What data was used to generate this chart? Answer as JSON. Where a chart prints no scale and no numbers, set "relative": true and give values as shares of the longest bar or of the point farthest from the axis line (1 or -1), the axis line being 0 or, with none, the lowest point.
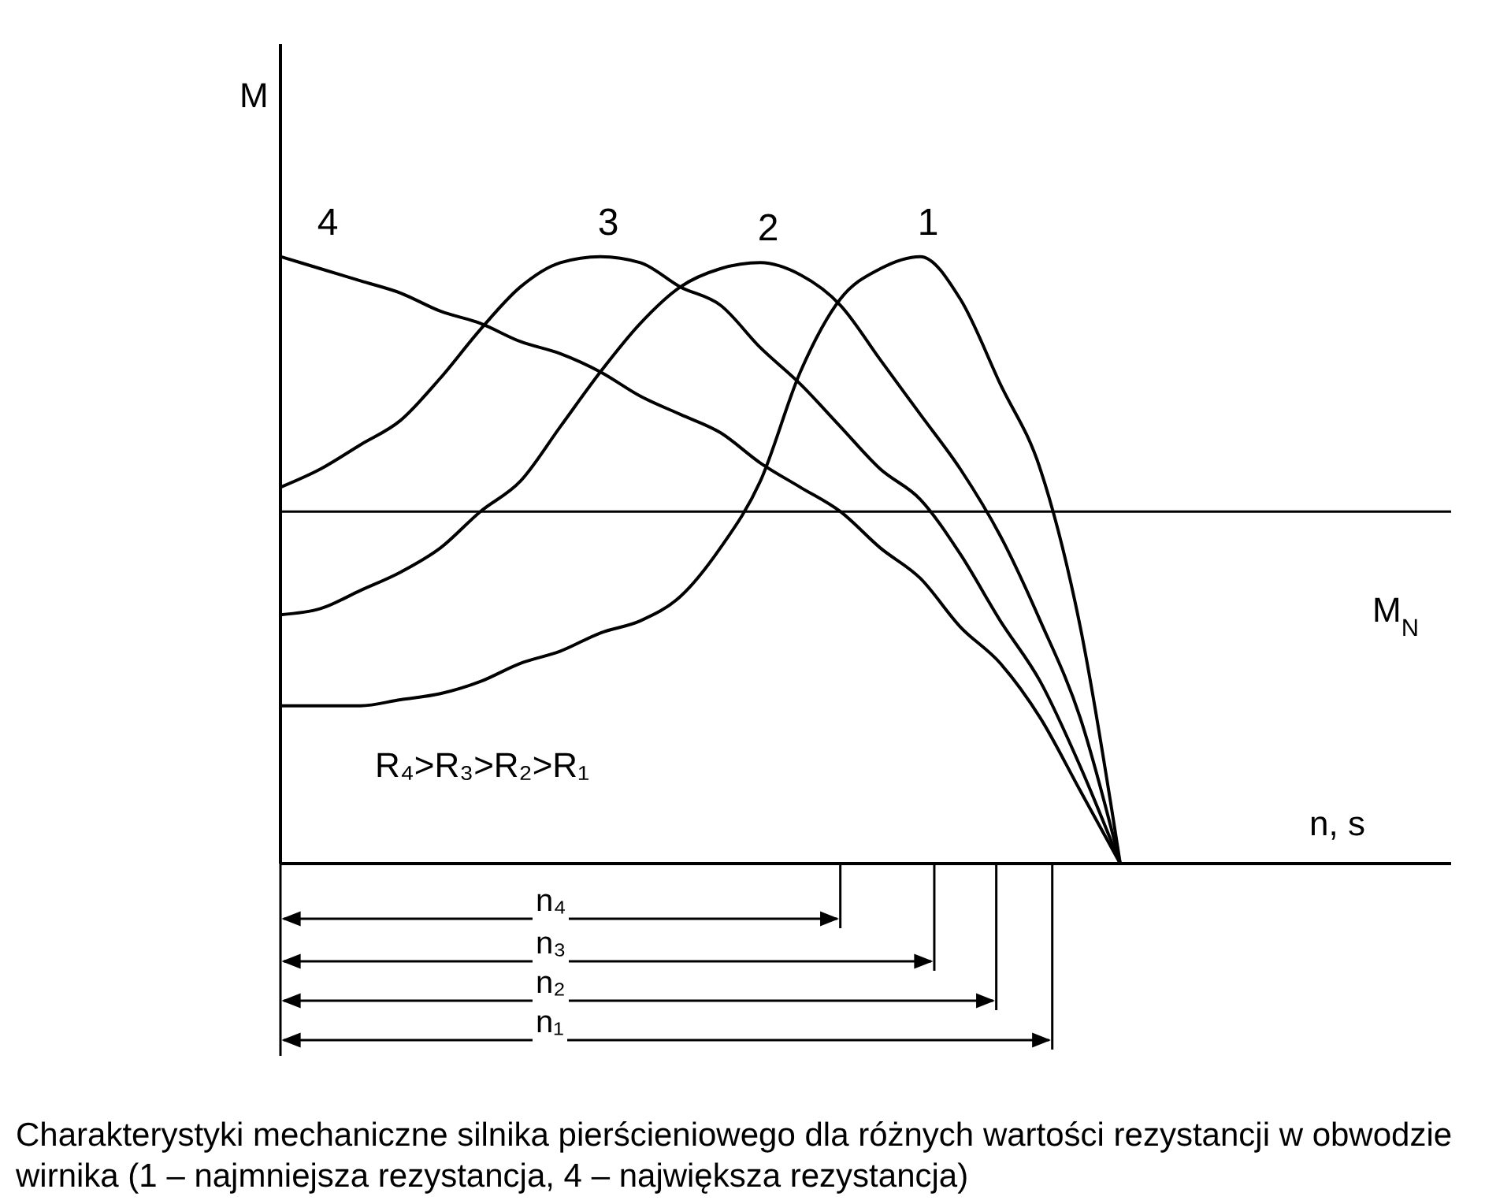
{
  "chart_data": {
    "type": "line",
    "title": "Charakterystyki mechaniczne silnika pierścieniowego dla różnych wartości rezystancji w obwodzie wirnika (1 – najmniejsza rezystancja, 4 – największa rezystancja)",
    "xlabel": "n, s",
    "ylabel": "M",
    "relative": true,
    "grid": false,
    "legend": false,
    "marker": "none",
    "line_style": "solid",
    "categories": [
      null,
      null,
      null,
      null,
      null,
      null,
      null,
      null,
      null,
      null,
      null,
      null,
      null,
      null,
      null,
      null,
      null,
      null,
      null,
      null,
      null,
      null
    ],
    "series": [
      {
        "name": "1",
        "color": "#000000",
        "values": [
          0.26,
          0.26,
          0.26,
          0.27,
          0.28,
          0.3,
          0.33,
          0.35,
          0.38,
          0.4,
          0.44,
          0.52,
          0.63,
          0.81,
          0.93,
          0.98,
          1.0,
          0.93,
          0.79,
          0.65,
          0.39,
          0
        ]
      },
      {
        "name": "2",
        "color": "#000000",
        "values": [
          0.41,
          0.42,
          0.45,
          0.48,
          0.52,
          0.58,
          0.63,
          0.72,
          0.81,
          0.89,
          0.95,
          0.98,
          0.99,
          0.97,
          0.92,
          0.83,
          0.74,
          0.65,
          0.54,
          0.4,
          0.24,
          0
        ]
      },
      {
        "name": "3",
        "color": "#000000",
        "values": [
          0.62,
          0.65,
          0.69,
          0.73,
          0.8,
          0.88,
          0.95,
          0.99,
          1.0,
          0.99,
          0.95,
          0.92,
          0.85,
          0.79,
          0.72,
          0.65,
          0.6,
          0.51,
          0.4,
          0.3,
          0.16,
          0
        ]
      },
      {
        "name": "4",
        "color": "#000000",
        "values": [
          1.0,
          0.98,
          0.96,
          0.94,
          0.91,
          0.89,
          0.86,
          0.84,
          0.81,
          0.77,
          0.74,
          0.71,
          0.66,
          0.62,
          0.58,
          0.52,
          0.47,
          0.39,
          0.33,
          0.24,
          0.12,
          0
        ]
      }
    ],
    "ref_lines": [
      {
        "axis": "y",
        "value": 0.58,
        "label": "M$_{N}$",
        "color": "#000000"
      }
    ],
    "annotations": [
      "R₄>R₃>R₂>R₁",
      "n₄",
      "n₃",
      "n₂",
      "n₁"
    ]
  }
}
